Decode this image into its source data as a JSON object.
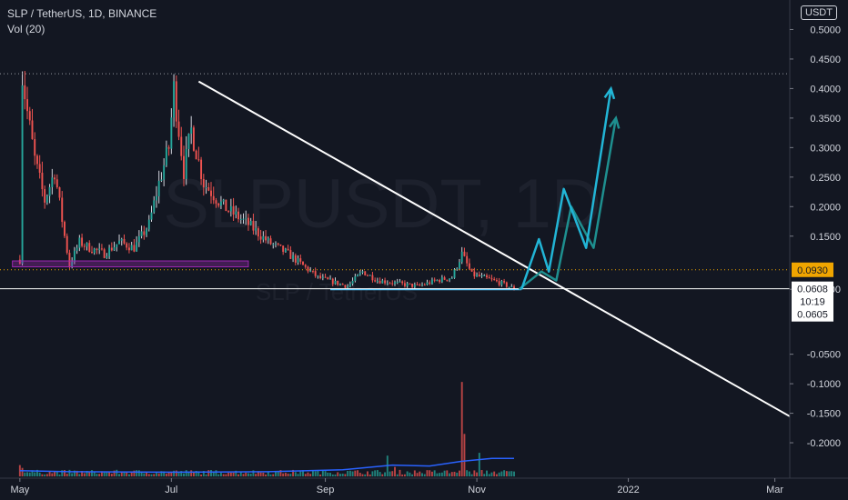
{
  "header": {
    "symbol_line": "SLP / TetherUS, 1D, BINANCE",
    "indicator": "Vol (20)",
    "currency": "USDT",
    "watermark": "SLPUSDT, 1D",
    "watermark_sub": "SLP / TetherUS"
  },
  "colors": {
    "background": "#131722",
    "up": "#26a69a",
    "down": "#ef5350",
    "wick": "#d1d4dc",
    "trendline": "#ffffff",
    "support_zone": "#9c27b0",
    "projection_primary": "#22b5d6",
    "projection_secondary": "#1e8f8f",
    "volume_ma": "#2962ff",
    "price_label": "#f0a500"
  },
  "price_labels": {
    "dotted_level": "0.0930",
    "last_price": "0.0608",
    "countdown": "10:19",
    "low_price": "0.0605"
  },
  "chart_data": {
    "type": "candlestick",
    "y_axis": {
      "ticks": [
        "0.5000",
        "0.4500",
        "0.4000",
        "0.3500",
        "0.3000",
        "0.2500",
        "0.2000",
        "0.1500",
        "0.0600",
        "-0.0500",
        "-0.1000",
        "-0.1500",
        "-0.2000"
      ],
      "tick_values": [
        0.5,
        0.45,
        0.4,
        0.35,
        0.3,
        0.25,
        0.2,
        0.15,
        0.06,
        -0.05,
        -0.1,
        -0.15,
        -0.2
      ],
      "range": [
        -0.26,
        0.55
      ]
    },
    "x_axis": {
      "ticks": [
        "May",
        "Jul",
        "Sep",
        "Nov",
        "2022",
        "Mar"
      ],
      "tick_days": [
        0,
        61,
        123,
        184,
        245,
        304
      ],
      "range_days": [
        -8,
        310
      ]
    },
    "trendline": {
      "x": [
        72,
        312
      ],
      "y": [
        0.412,
        -0.16
      ]
    },
    "support_zone": {
      "x": [
        -3,
        92
      ],
      "y_top": 0.108,
      "y_bottom": 0.098
    },
    "support_base": {
      "x": [
        125,
        202
      ],
      "y": 0.06
    },
    "dotted_top_level": 0.425,
    "dotted_level": 0.093,
    "last_price": 0.0608,
    "projection_primary": {
      "x": [
        202,
        209,
        213,
        219,
        228,
        238
      ],
      "y": [
        0.06,
        0.145,
        0.09,
        0.23,
        0.13,
        0.4
      ]
    },
    "projection_secondary": {
      "x": [
        201,
        210,
        216,
        222,
        231,
        240
      ],
      "y": [
        0.06,
        0.09,
        0.075,
        0.2,
        0.13,
        0.35
      ]
    },
    "price_anchors": [
      {
        "day": 0,
        "value": 0.11
      },
      {
        "day": 1,
        "value": 0.42
      },
      {
        "day": 3,
        "value": 0.36
      },
      {
        "day": 6,
        "value": 0.28
      },
      {
        "day": 10,
        "value": 0.21
      },
      {
        "day": 14,
        "value": 0.26
      },
      {
        "day": 18,
        "value": 0.15
      },
      {
        "day": 20,
        "value": 0.1
      },
      {
        "day": 24,
        "value": 0.14
      },
      {
        "day": 28,
        "value": 0.13
      },
      {
        "day": 34,
        "value": 0.12
      },
      {
        "day": 40,
        "value": 0.14
      },
      {
        "day": 46,
        "value": 0.13
      },
      {
        "day": 52,
        "value": 0.17
      },
      {
        "day": 56,
        "value": 0.24
      },
      {
        "day": 60,
        "value": 0.3
      },
      {
        "day": 62,
        "value": 0.4
      },
      {
        "day": 66,
        "value": 0.26
      },
      {
        "day": 69,
        "value": 0.33
      },
      {
        "day": 74,
        "value": 0.24
      },
      {
        "day": 82,
        "value": 0.2
      },
      {
        "day": 92,
        "value": 0.17
      },
      {
        "day": 100,
        "value": 0.14
      },
      {
        "day": 108,
        "value": 0.12
      },
      {
        "day": 114,
        "value": 0.1
      },
      {
        "day": 120,
        "value": 0.08
      },
      {
        "day": 128,
        "value": 0.07
      },
      {
        "day": 132,
        "value": 0.065
      },
      {
        "day": 138,
        "value": 0.09
      },
      {
        "day": 144,
        "value": 0.075
      },
      {
        "day": 152,
        "value": 0.07
      },
      {
        "day": 160,
        "value": 0.065
      },
      {
        "day": 168,
        "value": 0.075
      },
      {
        "day": 174,
        "value": 0.08
      },
      {
        "day": 178,
        "value": 0.12
      },
      {
        "day": 182,
        "value": 0.085
      },
      {
        "day": 188,
        "value": 0.078
      },
      {
        "day": 194,
        "value": 0.07
      },
      {
        "day": 199,
        "value": 0.0608
      }
    ],
    "price_range": [
      0,
      199
    ],
    "volume_band": {
      "bottom": -0.257,
      "max_height": 0.16
    },
    "volume_spikes": [
      {
        "day": 0,
        "value": 0.12
      },
      {
        "day": 1,
        "value": 0.09
      },
      {
        "day": 62,
        "value": 0.06
      },
      {
        "day": 148,
        "value": 0.22
      },
      {
        "day": 151,
        "value": 0.1
      },
      {
        "day": 178,
        "value": 1.0
      },
      {
        "day": 179,
        "value": 0.45
      },
      {
        "day": 185,
        "value": 0.25
      }
    ],
    "volume_ma": [
      {
        "day": 0,
        "value": 0.06
      },
      {
        "day": 20,
        "value": 0.05
      },
      {
        "day": 60,
        "value": 0.045
      },
      {
        "day": 100,
        "value": 0.05
      },
      {
        "day": 130,
        "value": 0.07
      },
      {
        "day": 150,
        "value": 0.12
      },
      {
        "day": 165,
        "value": 0.11
      },
      {
        "day": 178,
        "value": 0.16
      },
      {
        "day": 190,
        "value": 0.19
      },
      {
        "day": 199,
        "value": 0.19
      }
    ]
  }
}
